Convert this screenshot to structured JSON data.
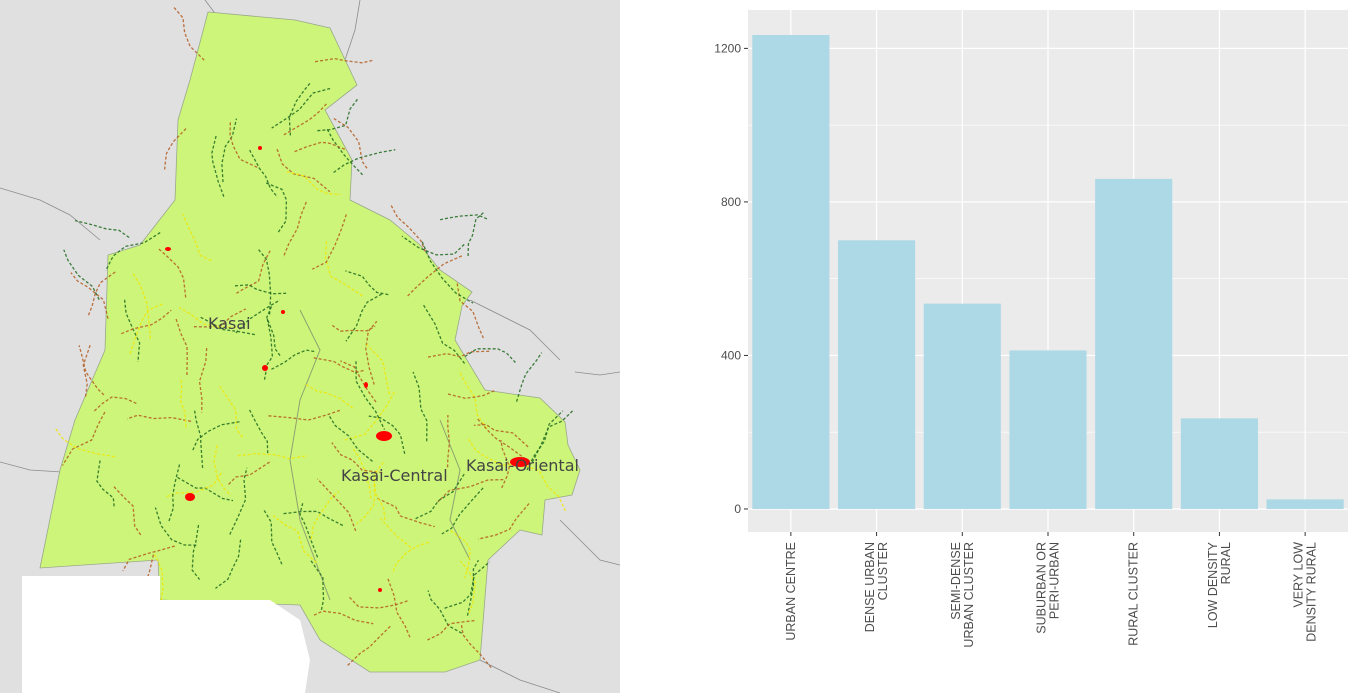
{
  "map": {
    "regions": [
      {
        "name": "Kasai"
      },
      {
        "name": "Kasai-Central"
      },
      {
        "name": "Kasai-Oriental"
      }
    ],
    "colors": {
      "background": "#e0e0e0",
      "land": "#ccf57a",
      "urban": "#ff0000",
      "peri_urban": "#f2e600",
      "rural_cluster": "#b35a1f",
      "low_density": "#1f6a1f",
      "blank": "#ffffff"
    }
  },
  "chart_data": {
    "type": "bar",
    "categories": [
      [
        "URBAN CENTRE"
      ],
      [
        "DENSE URBAN",
        "CLUSTER"
      ],
      [
        "SEMI-DENSE",
        "URBAN CLUSTER"
      ],
      [
        "SUBURBAN OR",
        "PERI-URBAN"
      ],
      [
        "RURAL CLUSTER"
      ],
      [
        "LOW DENSITY",
        "RURAL"
      ],
      [
        "VERY LOW",
        "DENSITY RURAL"
      ]
    ],
    "values": [
      1235,
      700,
      535,
      413,
      860,
      236,
      25
    ],
    "yticks": [
      0,
      400,
      800,
      1200
    ],
    "ylim": [
      -60,
      1300
    ],
    "xlabel": "",
    "ylabel": "",
    "grid": true,
    "bar_color": "#add8e6",
    "panel_color": "#ebebeb",
    "grid_color": "#ffffff"
  }
}
